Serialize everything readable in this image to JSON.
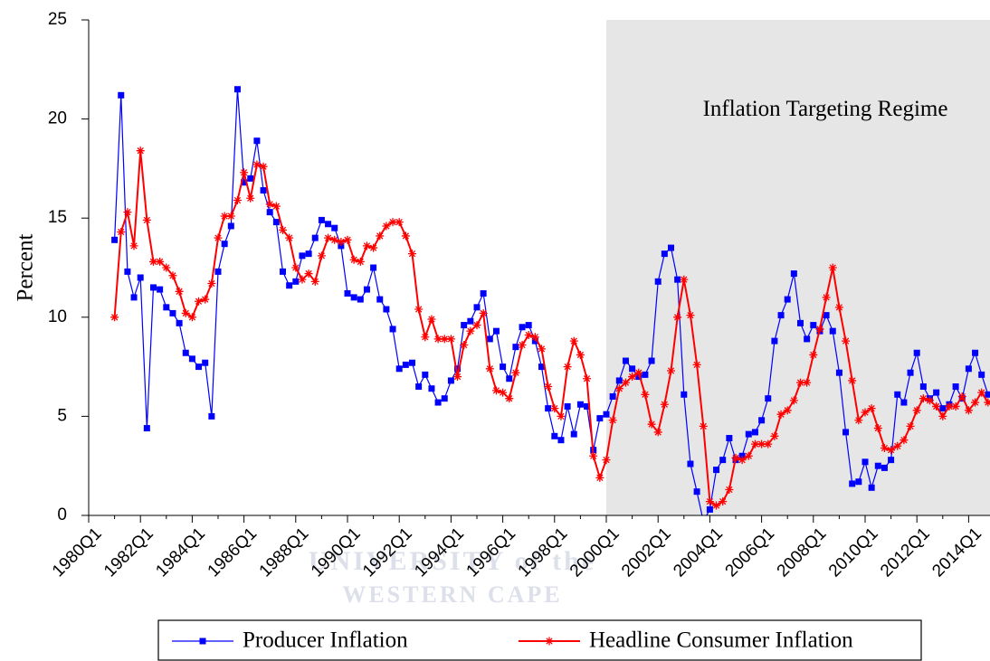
{
  "chart_data": {
    "type": "line",
    "ylabel": "Percent",
    "annotation": "Inflation Targeting Regime",
    "shade_from": "2000Q1",
    "shade_color": "#e6e6e6",
    "watermark": [
      "UNIVERSITY of the",
      "WESTERN CAPE"
    ],
    "legend": "bottom",
    "ylim": [
      0,
      25
    ],
    "yticks": [
      0,
      5,
      10,
      15,
      20,
      25
    ],
    "categories": [
      "1980Q1",
      null,
      null,
      null,
      null,
      null,
      null,
      null,
      "1982Q1",
      null,
      null,
      null,
      null,
      null,
      null,
      null,
      "1984Q1",
      null,
      null,
      null,
      null,
      null,
      null,
      null,
      "1986Q1",
      null,
      null,
      null,
      null,
      null,
      null,
      null,
      "1988Q1",
      null,
      null,
      null,
      null,
      null,
      null,
      null,
      "1990Q1",
      null,
      null,
      null,
      null,
      null,
      null,
      null,
      "1992Q1",
      null,
      null,
      null,
      null,
      null,
      null,
      null,
      "1994Q1",
      null,
      null,
      null,
      null,
      null,
      null,
      null,
      "1996Q1",
      null,
      null,
      null,
      null,
      null,
      null,
      null,
      "1998Q1",
      null,
      null,
      null,
      null,
      null,
      null,
      null,
      "2000Q1",
      null,
      null,
      null,
      null,
      null,
      null,
      null,
      "2002Q1",
      null,
      null,
      null,
      null,
      null,
      null,
      null,
      "2004Q1",
      null,
      null,
      null,
      null,
      null,
      null,
      null,
      "2006Q1",
      null,
      null,
      null,
      null,
      null,
      null,
      null,
      "2008Q1",
      null,
      null,
      null,
      null,
      null,
      null,
      null,
      "2010Q1",
      null,
      null,
      null,
      null,
      null,
      null,
      null,
      "2012Q1",
      null,
      null,
      null,
      null,
      null,
      null,
      null,
      "2014Q1",
      null,
      null,
      null
    ],
    "series": [
      {
        "name": "Producer Inflation",
        "color": "#0000ff",
        "marker": "square",
        "values": [
          null,
          null,
          null,
          null,
          13.9,
          21.2,
          12.3,
          11.0,
          12.0,
          4.4,
          11.5,
          11.4,
          10.5,
          10.2,
          9.7,
          8.2,
          7.9,
          7.5,
          7.7,
          5.0,
          12.3,
          13.7,
          14.6,
          21.5,
          16.8,
          17.0,
          18.9,
          16.4,
          15.3,
          14.8,
          12.3,
          11.6,
          11.8,
          13.1,
          13.2,
          14.0,
          14.9,
          14.7,
          14.5,
          13.6,
          11.2,
          11.0,
          10.9,
          11.4,
          12.5,
          10.9,
          10.4,
          9.4,
          7.4,
          7.6,
          7.7,
          6.5,
          7.1,
          6.4,
          5.7,
          5.9,
          6.8,
          7.4,
          9.6,
          9.8,
          10.5,
          11.2,
          8.9,
          9.3,
          7.5,
          6.9,
          8.5,
          9.5,
          9.6,
          8.8,
          7.5,
          5.4,
          4.0,
          3.8,
          5.5,
          4.1,
          5.6,
          5.5,
          3.3,
          4.9,
          5.1,
          6.0,
          6.8,
          7.8,
          7.4,
          7.0,
          7.1,
          7.8,
          11.8,
          13.2,
          13.5,
          11.9,
          6.1,
          2.6,
          1.2,
          -0.3,
          0.3,
          2.3,
          2.8,
          3.9,
          2.8,
          3.0,
          4.1,
          4.2,
          4.8,
          5.9,
          8.8,
          10.1,
          10.9,
          12.2,
          9.7,
          8.9,
          9.6,
          9.3,
          10.1,
          9.3,
          7.2,
          4.2,
          1.6,
          1.7,
          2.7,
          1.4,
          2.5,
          2.4,
          2.8,
          6.1,
          5.7,
          7.2,
          8.2,
          6.5,
          5.9,
          6.2,
          5.4,
          5.6,
          6.5,
          5.9,
          7.4,
          8.2,
          7.1,
          6.1
        ]
      },
      {
        "name": "Headline Consumer Inflation",
        "color": "#ff0000",
        "marker": "star",
        "values": [
          null,
          null,
          null,
          null,
          10.0,
          14.3,
          15.3,
          13.6,
          18.4,
          14.9,
          12.8,
          12.8,
          12.5,
          12.1,
          11.3,
          10.2,
          10.0,
          10.8,
          10.9,
          11.7,
          14.0,
          15.1,
          15.1,
          15.9,
          17.3,
          16.0,
          17.7,
          17.6,
          15.7,
          15.6,
          14.4,
          14.0,
          12.5,
          11.9,
          12.2,
          11.8,
          13.1,
          14.0,
          13.9,
          13.8,
          13.9,
          12.9,
          12.8,
          13.6,
          13.5,
          14.1,
          14.6,
          14.8,
          14.8,
          14.1,
          13.2,
          10.4,
          9.0,
          9.9,
          8.9,
          8.9,
          8.9,
          7.0,
          8.6,
          9.3,
          9.6,
          10.2,
          7.4,
          6.3,
          6.2,
          5.9,
          7.2,
          8.6,
          9.1,
          9.0,
          8.4,
          6.5,
          5.4,
          5.0,
          7.5,
          8.8,
          8.1,
          6.9,
          3.0,
          1.9,
          2.8,
          4.8,
          6.4,
          6.7,
          7.0,
          7.2,
          6.1,
          4.6,
          4.2,
          5.6,
          7.3,
          10.0,
          11.9,
          10.1,
          7.6,
          4.5,
          0.7,
          0.5,
          0.7,
          1.3,
          2.9,
          2.8,
          3.0,
          3.6,
          3.6,
          3.6,
          4.0,
          5.1,
          5.3,
          5.8,
          6.7,
          6.7,
          8.1,
          9.4,
          11.0,
          12.5,
          10.5,
          8.8,
          6.8,
          4.8,
          5.2,
          5.4,
          4.4,
          3.4,
          3.3,
          3.5,
          3.8,
          4.5,
          5.3,
          5.9,
          5.8,
          5.5,
          5.0,
          5.5,
          5.5,
          6.0,
          5.3,
          5.7,
          6.2,
          5.7
        ]
      }
    ]
  }
}
